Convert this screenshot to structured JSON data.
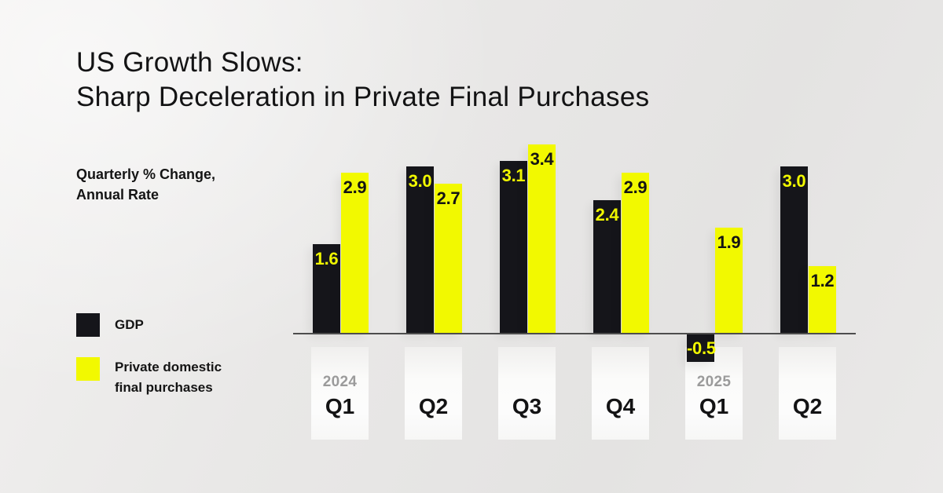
{
  "title": {
    "line1": "US Growth Slows:",
    "line2": "Sharp Deceleration in Private Final Purchases"
  },
  "subtitle": {
    "line1": "Quarterly % Change,",
    "line2": "Annual Rate"
  },
  "legend": {
    "gdp": {
      "label": "GDP",
      "color": "#15151a"
    },
    "pdfp": {
      "line1": "Private domestic",
      "line2": "final purchases",
      "color": "#f2f900"
    }
  },
  "colors": {
    "background": "#eae9e8",
    "bar_black": "#15151a",
    "bar_yellow": "#f2f900",
    "label_on_black": "#f2f900",
    "label_on_yellow": "#141414",
    "axis_line": "#4d4d4d",
    "year_gray": "#9b9b9b",
    "text_dark": "#131314",
    "panel": "#fbfbfa"
  },
  "chart_data": {
    "type": "bar",
    "title": "US Growth Slows: Sharp Deceleration in Private Final Purchases",
    "subtitle": "Quarterly % Change, Annual Rate",
    "categories": [
      {
        "quarter": "Q1",
        "year": "2024"
      },
      {
        "quarter": "Q2",
        "year": ""
      },
      {
        "quarter": "Q3",
        "year": ""
      },
      {
        "quarter": "Q4",
        "year": ""
      },
      {
        "quarter": "Q1",
        "year": "2025"
      },
      {
        "quarter": "Q2",
        "year": ""
      }
    ],
    "series": [
      {
        "name": "GDP",
        "color": "#15151a",
        "label_color": "#f2f900",
        "values": [
          1.6,
          3.0,
          3.1,
          2.4,
          -0.5,
          3.0
        ],
        "labels": [
          "1.6",
          "3.0",
          "3.1",
          "2.4",
          "-0.5",
          "3.0"
        ]
      },
      {
        "name": "Private domestic final purchases",
        "color": "#f2f900",
        "label_color": "#141414",
        "values": [
          2.9,
          2.7,
          3.4,
          2.9,
          1.9,
          1.2
        ],
        "labels": [
          "2.9",
          "2.7",
          "3.4",
          "2.9",
          "1.9",
          "1.2"
        ]
      }
    ],
    "xlabel": "",
    "ylabel": "Quarterly % Change, Annual Rate",
    "ylim": [
      -0.6,
      3.5
    ],
    "baseline": 0,
    "grid": false,
    "legend_position": "left",
    "value_labels": "inside-end"
  }
}
